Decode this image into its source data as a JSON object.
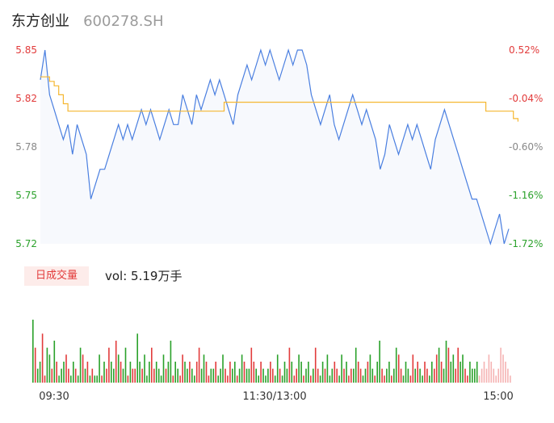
{
  "header": {
    "name": "东方创业",
    "code": "600278.SH"
  },
  "volume_panel": {
    "tag": "日成交量",
    "vol_label": "vol: 5.19万手"
  },
  "colors": {
    "price_line": "#4a7fe0",
    "avg_line": "#f5b731",
    "up": "#e23b3b",
    "down": "#2aa12a",
    "neutral": "#888888",
    "area_fill": "#f7f9fd"
  },
  "chart_data": [
    {
      "type": "line",
      "title": "",
      "y_ticks": [
        "5.85",
        "5.82",
        "5.78",
        "5.75",
        "5.72"
      ],
      "y2_ticks": [
        "0.52%",
        "-0.04%",
        "-0.60%",
        "-1.16%",
        "-1.72%"
      ],
      "ylim": [
        5.72,
        5.85
      ],
      "x_ticks": [
        "09:30",
        "11:30/13:00",
        "15:00"
      ],
      "series": [
        {
          "role": "price",
          "values": [
            5.83,
            5.85,
            5.82,
            5.81,
            5.8,
            5.79,
            5.8,
            5.78,
            5.8,
            5.79,
            5.78,
            5.75,
            5.76,
            5.77,
            5.77,
            5.78,
            5.79,
            5.8,
            5.79,
            5.8,
            5.79,
            5.8,
            5.81,
            5.8,
            5.81,
            5.8,
            5.79,
            5.8,
            5.81,
            5.8,
            5.8,
            5.82,
            5.81,
            5.8,
            5.82,
            5.81,
            5.82,
            5.83,
            5.82,
            5.83,
            5.82,
            5.81,
            5.8,
            5.82,
            5.83,
            5.84,
            5.83,
            5.84,
            5.85,
            5.84,
            5.85,
            5.84,
            5.83,
            5.84,
            5.85,
            5.84,
            5.85,
            5.85,
            5.84,
            5.82,
            5.81,
            5.8,
            5.81,
            5.82,
            5.8,
            5.79,
            5.8,
            5.81,
            5.82,
            5.81,
            5.8,
            5.81,
            5.8,
            5.79,
            5.77,
            5.78,
            5.8,
            5.79,
            5.78,
            5.79,
            5.8,
            5.79,
            5.8,
            5.79,
            5.78,
            5.77,
            5.79,
            5.8,
            5.81,
            5.8,
            5.79,
            5.78,
            5.77,
            5.76,
            5.75,
            5.75,
            5.74,
            5.73,
            5.72,
            5.73,
            5.74,
            5.72,
            5.73
          ]
        },
        {
          "role": "average",
          "values": [
            5.832,
            5.832,
            5.829,
            5.826,
            5.82,
            5.814,
            5.809,
            5.809,
            5.809,
            5.809,
            5.809,
            5.809,
            5.809,
            5.809,
            5.809,
            5.809,
            5.809,
            5.809,
            5.809,
            5.809,
            5.809,
            5.809,
            5.809,
            5.809,
            5.809,
            5.809,
            5.809,
            5.809,
            5.809,
            5.809,
            5.809,
            5.809,
            5.809,
            5.809,
            5.809,
            5.809,
            5.809,
            5.809,
            5.809,
            5.809,
            5.815,
            5.815,
            5.815,
            5.815,
            5.815,
            5.815,
            5.815,
            5.815,
            5.815,
            5.815,
            5.815,
            5.815,
            5.815,
            5.815,
            5.815,
            5.815,
            5.815,
            5.815,
            5.815,
            5.815,
            5.815,
            5.815,
            5.815,
            5.815,
            5.815,
            5.815,
            5.815,
            5.815,
            5.815,
            5.815,
            5.815,
            5.815,
            5.815,
            5.815,
            5.815,
            5.815,
            5.815,
            5.815,
            5.815,
            5.815,
            5.815,
            5.815,
            5.815,
            5.815,
            5.815,
            5.815,
            5.815,
            5.815,
            5.815,
            5.815,
            5.815,
            5.815,
            5.815,
            5.815,
            5.815,
            5.815,
            5.815,
            5.809,
            5.809,
            5.809,
            5.809,
            5.809,
            5.809,
            5.804,
            5.802
          ]
        }
      ]
    },
    {
      "type": "bar",
      "title": "",
      "values": [
        9,
        5,
        2,
        3,
        7,
        1,
        5,
        4,
        2,
        6,
        3,
        1,
        2,
        3,
        4,
        2,
        1,
        3,
        2,
        1,
        5,
        4,
        2,
        3,
        1,
        2,
        1,
        1,
        4,
        1,
        3,
        2,
        5,
        3,
        2,
        6,
        4,
        3,
        2,
        5,
        1,
        3,
        2,
        2,
        7,
        3,
        2,
        4,
        1,
        3,
        5,
        2,
        3,
        2,
        1,
        4,
        2,
        3,
        6,
        1,
        3,
        2,
        1,
        4,
        3,
        2,
        3,
        2,
        1,
        3,
        5,
        2,
        4,
        3,
        1,
        2,
        2,
        3,
        1,
        2,
        4,
        2,
        1,
        3,
        2,
        3,
        1,
        2,
        4,
        3,
        2,
        2,
        5,
        3,
        2,
        1,
        3,
        2,
        1,
        2,
        3,
        2,
        1,
        4,
        2,
        1,
        3,
        2,
        5,
        3,
        1,
        2,
        4,
        3,
        1,
        2,
        3,
        1,
        2,
        5,
        2,
        1,
        3,
        2,
        4,
        1,
        2,
        3,
        2,
        1,
        4,
        2,
        3,
        1,
        2,
        2,
        5,
        3,
        2,
        1,
        2,
        3,
        4,
        2,
        1,
        3,
        6,
        2,
        1,
        2,
        3,
        1,
        2,
        5,
        4,
        2,
        1,
        3,
        2,
        1,
        4,
        2,
        3,
        2,
        1,
        3,
        2,
        1,
        3,
        2,
        4,
        5,
        3,
        2,
        6,
        5,
        3,
        4,
        2,
        5,
        3,
        4,
        2,
        1,
        3,
        2,
        2,
        3,
        1,
        2,
        3,
        2,
        4,
        3,
        2,
        1,
        2,
        5,
        4,
        3,
        2,
        1
      ],
      "flags": "dudduuddududdduudduddudududdduduuddududduduudduddduudddduddudduuddudduudduudduddduuudduddudduudduddduudduddduduuddudduduudduddduudduduudduudduddudduuddudduuddduududduudduududdudduudduuddddn"
    }
  ]
}
